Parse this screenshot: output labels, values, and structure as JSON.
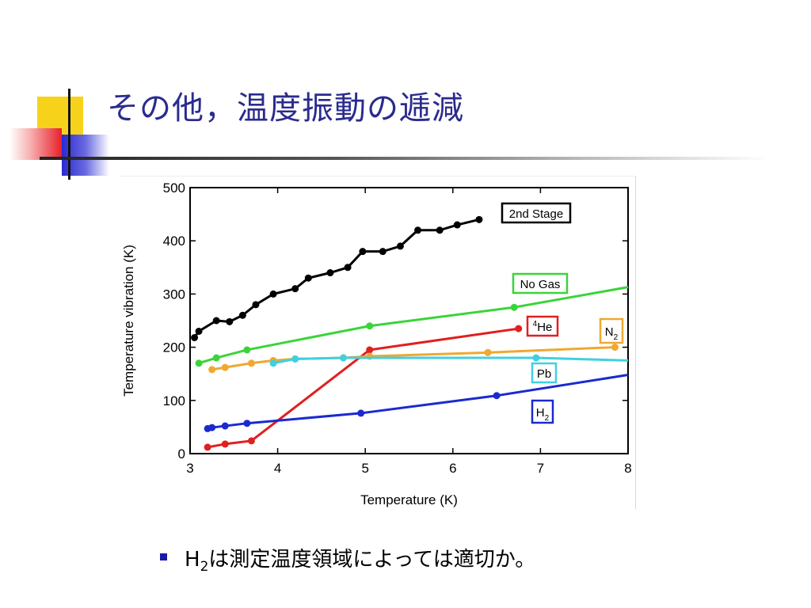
{
  "slide": {
    "title": "その他，温度振動の逓減",
    "bullet": {
      "prefix": "H",
      "subscript": "2",
      "suffix": "は測定温度領域によっては適切か。"
    }
  },
  "colors": {
    "title": "#2b2b8f",
    "bullet_marker": "#1a1aa8",
    "deco_yellow": "#f7d21a",
    "deco_red": "#e8202a",
    "deco_blue": "#2a2ad0"
  },
  "chart_data": {
    "type": "line",
    "title": "",
    "xlabel": "Temperature (K)",
    "ylabel": "Temperature vibration (K)",
    "xlim": [
      3,
      8
    ],
    "ylim": [
      0,
      500
    ],
    "xticks": [
      "3",
      "4",
      "5",
      "6",
      "7",
      "8"
    ],
    "yticks": [
      "0",
      "100",
      "200",
      "300",
      "400",
      "500"
    ],
    "grid": false,
    "series": [
      {
        "name": "2nd Stage",
        "color": "#000000",
        "markers": true,
        "points": [
          [
            3.05,
            218
          ],
          [
            3.1,
            230
          ],
          [
            3.3,
            250
          ],
          [
            3.45,
            248
          ],
          [
            3.6,
            260
          ],
          [
            3.75,
            280
          ],
          [
            3.95,
            300
          ],
          [
            4.2,
            310
          ],
          [
            4.35,
            330
          ],
          [
            4.6,
            340
          ],
          [
            4.8,
            350
          ],
          [
            4.97,
            380
          ],
          [
            5.2,
            380
          ],
          [
            5.4,
            390
          ],
          [
            5.6,
            420
          ],
          [
            5.85,
            420
          ],
          [
            6.05,
            430
          ],
          [
            6.3,
            440
          ]
        ]
      },
      {
        "name": "No Gas",
        "color": "#3ad43a",
        "markers": true,
        "points": [
          [
            3.1,
            170
          ],
          [
            3.3,
            180
          ],
          [
            3.65,
            195
          ],
          [
            5.05,
            240
          ],
          [
            6.7,
            275
          ],
          [
            8.0,
            313
          ]
        ],
        "marker_indices": [
          0,
          1,
          2,
          3,
          4
        ]
      },
      {
        "name": "⁴He",
        "sup": "4",
        "label": "He",
        "color": "#e02020",
        "markers": true,
        "points": [
          [
            3.2,
            12
          ],
          [
            3.4,
            18
          ],
          [
            3.7,
            24
          ],
          [
            5.05,
            195
          ],
          [
            6.75,
            235
          ]
        ]
      },
      {
        "name": "N₂",
        "sub": "2",
        "label": "N",
        "color": "#f0a830",
        "markers": true,
        "points": [
          [
            3.25,
            158
          ],
          [
            3.4,
            162
          ],
          [
            3.7,
            170
          ],
          [
            3.95,
            175
          ],
          [
            4.2,
            178
          ],
          [
            4.75,
            180
          ],
          [
            5.05,
            183
          ],
          [
            6.4,
            190
          ],
          [
            7.85,
            200
          ]
        ],
        "marker_indices": [
          0,
          1,
          2,
          3,
          4,
          5,
          6,
          7,
          8
        ]
      },
      {
        "name": "Pb",
        "color": "#40d0e0",
        "markers": true,
        "points": [
          [
            3.95,
            170
          ],
          [
            4.2,
            178
          ],
          [
            4.75,
            180
          ],
          [
            5.05,
            180
          ],
          [
            6.95,
            180
          ],
          [
            8.0,
            175
          ]
        ],
        "marker_indices": [
          0,
          1,
          2,
          4
        ]
      },
      {
        "name": "H₂",
        "sub": "2",
        "label": "H",
        "color": "#1a2ad0",
        "markers": true,
        "points": [
          [
            3.2,
            47
          ],
          [
            3.25,
            49
          ],
          [
            3.4,
            52
          ],
          [
            3.65,
            57
          ],
          [
            4.95,
            76
          ],
          [
            6.5,
            109
          ],
          [
            8.0,
            148
          ]
        ],
        "marker_indices": [
          0,
          1,
          2,
          3,
          4,
          5
        ]
      }
    ],
    "legend": [
      {
        "text": "2nd Stage",
        "color": "#000000"
      },
      {
        "text": "No Gas",
        "color": "#3ad43a"
      },
      {
        "text": "He",
        "sup": "4",
        "color": "#e02020"
      },
      {
        "text": "N",
        "sub": "2",
        "color": "#f0a830"
      },
      {
        "text": "Pb",
        "color": "#40d0e0"
      },
      {
        "text": "H",
        "sub": "2",
        "color": "#1a2ad0"
      }
    ]
  }
}
